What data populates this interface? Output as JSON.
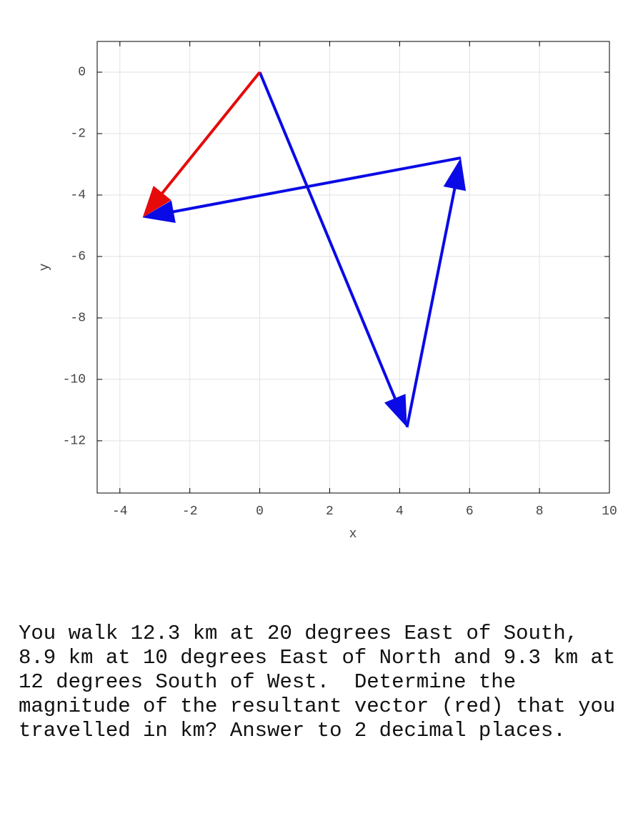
{
  "chart_data": {
    "type": "vector",
    "xlabel": "x",
    "ylabel": "y",
    "xlim": [
      -4.65,
      10
    ],
    "ylim": [
      -13.7,
      1
    ],
    "xticks": [
      -4,
      -2,
      0,
      2,
      4,
      6,
      8,
      10
    ],
    "yticks": [
      0,
      -2,
      -4,
      -6,
      -8,
      -10,
      -12
    ],
    "grid": true,
    "vectors": [
      {
        "x0": 0,
        "y0": 0,
        "x1": 4.21,
        "y1": -11.56,
        "color": "#0a0ae6"
      },
      {
        "x0": 4.21,
        "y0": -11.56,
        "x1": 5.75,
        "y1": -2.79,
        "color": "#0a0ae6"
      },
      {
        "x0": 5.75,
        "y0": -2.79,
        "x1": -3.35,
        "y1": -4.73,
        "color": "#0a0ae6"
      },
      {
        "x0": 0,
        "y0": 0,
        "x1": -3.35,
        "y1": -4.73,
        "color": "#e60a0a"
      }
    ]
  },
  "question": [
    "You walk 12.3 km at 20 degrees East of South,",
    "8.9 km at 10 degrees East of North and 9.3 km at",
    "12 degrees South of West.  Determine the",
    "magnitude of the resultant vector (red) that you",
    "travelled in km? Answer to 2 decimal places."
  ]
}
